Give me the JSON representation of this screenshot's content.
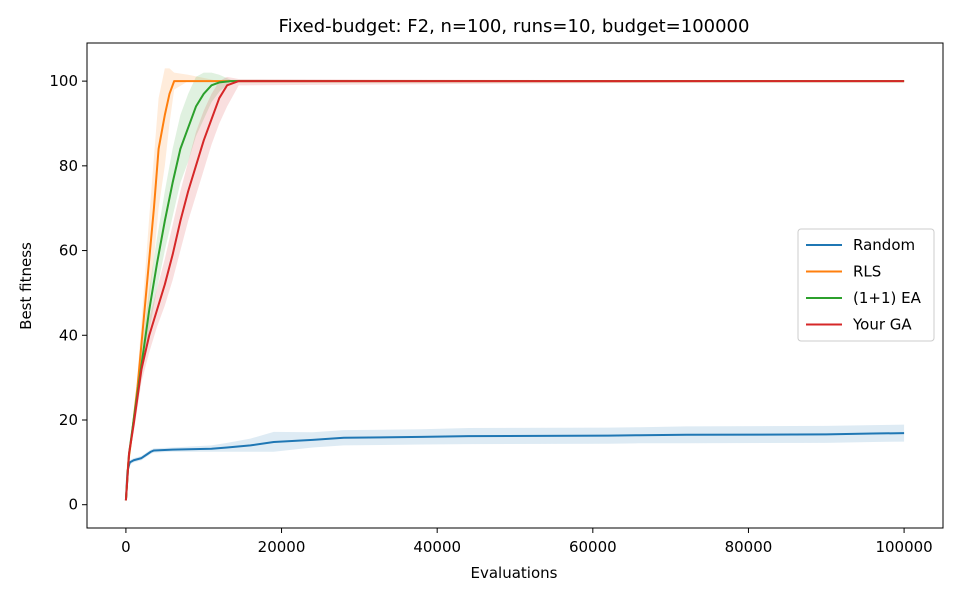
{
  "chart_data": {
    "type": "line",
    "title": "Fixed-budget: F2, n=100, runs=10, budget=100000",
    "xlabel": "Evaluations",
    "ylabel": "Best fitness",
    "xlim": [
      -5000,
      105000
    ],
    "ylim": [
      -5.5,
      109
    ],
    "xticks": [
      0,
      20000,
      40000,
      60000,
      80000,
      100000
    ],
    "yticks": [
      0,
      20,
      40,
      60,
      80,
      100
    ],
    "grid": false,
    "legend_position": "center-right",
    "series": [
      {
        "name": "Random",
        "color": "#1f77b4",
        "band_color": "#1f77b4",
        "band_opacity": 0.15,
        "x": [
          0,
          200,
          500,
          1000,
          2000,
          2800,
          3200,
          3600,
          6000,
          11000,
          13000,
          16000,
          19000,
          24000,
          28000,
          38000,
          44000,
          62000,
          66000,
          72000,
          90000,
          96000,
          100000
        ],
        "y": [
          1,
          8,
          10,
          10.5,
          11,
          12,
          12.5,
          12.8,
          13,
          13.2,
          13.5,
          14,
          14.8,
          15.3,
          15.8,
          16,
          16.2,
          16.3,
          16.4,
          16.5,
          16.6,
          16.8,
          16.9
        ],
        "lower": [
          1,
          7.5,
          9.5,
          10,
          10.5,
          11.5,
          12,
          12.3,
          12.5,
          12.5,
          12.5,
          12.5,
          12.5,
          13.5,
          14,
          14.2,
          14.3,
          14.4,
          14.5,
          14.5,
          14.6,
          14.8,
          14.9
        ],
        "upper": [
          1,
          8.5,
          10.5,
          11,
          11.5,
          12.5,
          13,
          13.3,
          13.5,
          14,
          14.6,
          15.6,
          17.2,
          17.1,
          17.6,
          17.8,
          18.1,
          18.2,
          18.3,
          18.5,
          18.6,
          18.8,
          18.9
        ]
      },
      {
        "name": "RLS",
        "color": "#ff7f0e",
        "band_color": "#ff7f0e",
        "band_opacity": 0.15,
        "x": [
          0,
          300,
          800,
          1500,
          2200,
          3000,
          3600,
          4200,
          5000,
          5600,
          6200,
          8000,
          12000,
          100000
        ],
        "y": [
          1,
          10,
          17,
          28,
          42,
          58,
          70,
          84,
          92,
          97,
          100,
          100,
          100,
          100
        ],
        "lower": [
          1,
          9,
          15,
          25,
          36,
          48,
          58,
          70,
          80,
          90,
          98,
          100,
          100,
          100
        ],
        "upper": [
          1,
          11,
          19,
          31,
          48,
          68,
          82,
          96,
          103,
          103,
          102,
          101.5,
          100,
          100
        ]
      },
      {
        "name": "(1+1) EA",
        "color": "#2ca02c",
        "band_color": "#2ca02c",
        "band_opacity": 0.15,
        "x": [
          0,
          400,
          1000,
          2000,
          3000,
          4000,
          5000,
          6000,
          7000,
          8000,
          9000,
          10000,
          11000,
          12000,
          13500,
          100000
        ],
        "y": [
          1,
          12,
          20,
          33,
          46,
          57,
          67,
          76,
          84,
          89,
          94,
          97,
          99,
          99.7,
          100,
          100
        ],
        "lower": [
          1,
          11,
          18,
          30,
          41,
          51,
          60,
          68,
          76,
          81,
          87,
          91,
          95,
          97.5,
          100,
          100
        ],
        "upper": [
          1,
          13,
          22,
          36,
          51,
          63,
          74,
          84,
          92,
          97,
          101,
          102,
          102,
          101.5,
          100.3,
          100
        ]
      },
      {
        "name": "Your GA",
        "color": "#d62728",
        "band_color": "#d62728",
        "band_opacity": 0.15,
        "x": [
          0,
          400,
          1000,
          2000,
          3000,
          4000,
          5000,
          6000,
          7000,
          8000,
          9000,
          10000,
          11000,
          12000,
          13000,
          14500,
          100000
        ],
        "y": [
          1,
          12,
          19,
          32,
          40,
          46,
          52,
          59,
          67,
          74,
          80,
          86,
          91,
          96,
          99,
          100,
          100
        ],
        "lower": [
          1,
          11,
          17,
          29,
          36,
          42,
          47,
          53,
          60,
          67,
          73,
          79,
          85,
          90,
          94,
          99,
          100
        ],
        "upper": [
          1,
          13,
          21,
          35,
          44,
          51,
          58,
          66,
          74,
          81,
          88,
          93,
          97,
          100,
          101,
          100.5,
          100
        ]
      }
    ]
  }
}
